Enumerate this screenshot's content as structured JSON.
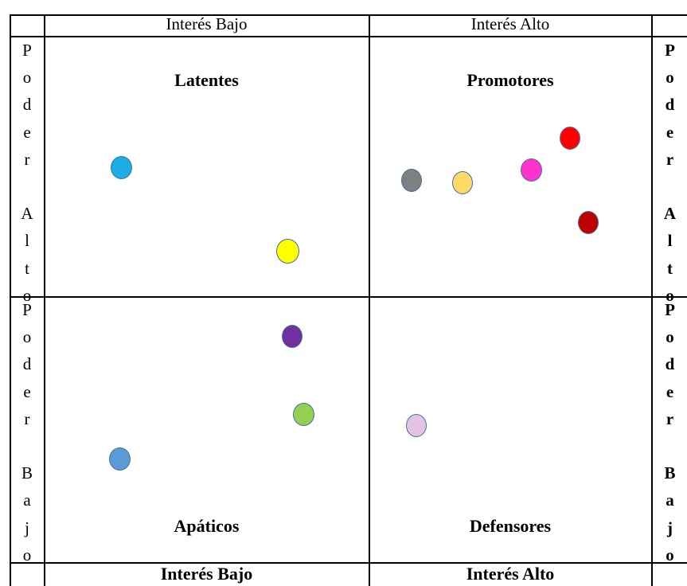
{
  "header": {
    "left": "Interés Bajo",
    "right": "Interés Alto"
  },
  "footer": {
    "left": "Interés Bajo",
    "right": "Interés Alto"
  },
  "quadrants": {
    "top_left": "Latentes",
    "top_right": "Promotores",
    "bottom_left": "Apáticos",
    "bottom_right": "Defensores"
  },
  "side_labels": {
    "top": [
      "P",
      "o",
      "d",
      "e",
      "r",
      "",
      "A",
      "l",
      "t",
      "o"
    ],
    "bottom": [
      "P",
      "o",
      "d",
      "e",
      "r",
      "",
      "B",
      "a",
      "j",
      "o"
    ]
  },
  "stakeholders": [
    {
      "name": "blue-circle",
      "color": "#1cade4"
    },
    {
      "name": "yellow-circle",
      "color": "#ffff00"
    },
    {
      "name": "gray-circle",
      "color": "#808080"
    },
    {
      "name": "light-orange-circle",
      "color": "#ffd966"
    },
    {
      "name": "magenta-circle",
      "color": "#ff33cc"
    },
    {
      "name": "red-circle",
      "color": "#ff0000"
    },
    {
      "name": "dark-red-circle",
      "color": "#c00000"
    },
    {
      "name": "purple-circle",
      "color": "#7030a0"
    },
    {
      "name": "green-circle",
      "color": "#92d050"
    },
    {
      "name": "pink-circle",
      "color": "#e6c3e3"
    },
    {
      "name": "steel-blue-circle",
      "color": "#5b9bd5"
    }
  ]
}
